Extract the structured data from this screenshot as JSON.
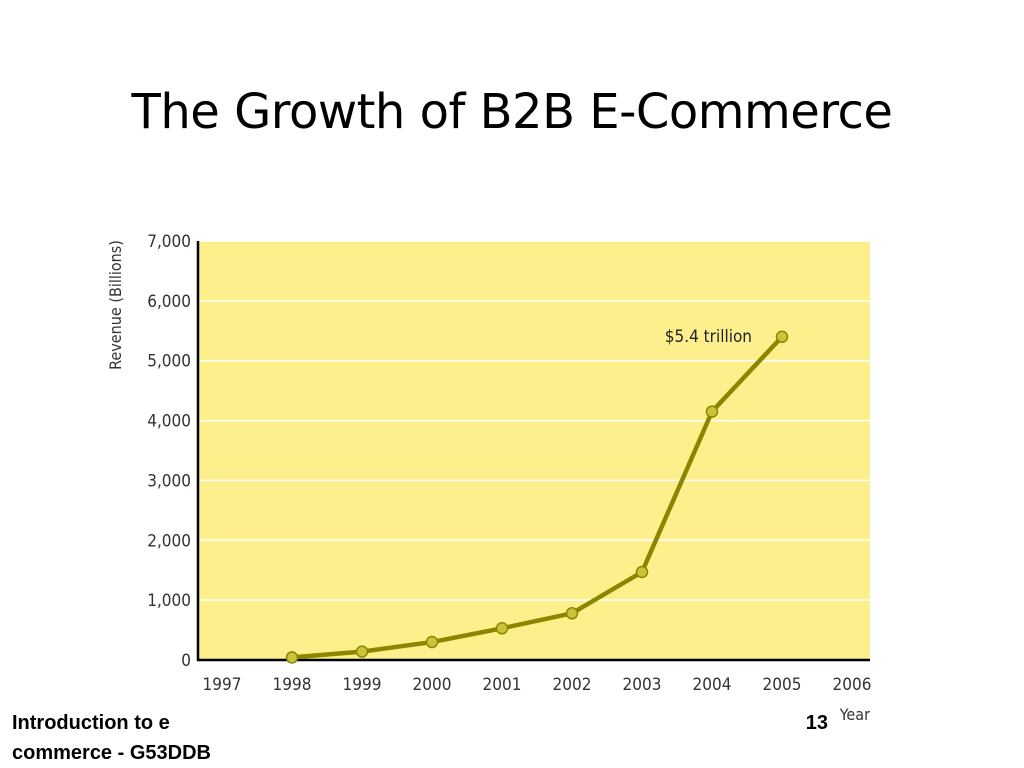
{
  "slide": {
    "title": "The Growth of B2B E-Commerce",
    "footer_line1": "Introduction to e",
    "footer_line2": "commerce - G53DDB",
    "page_number": "13"
  },
  "colors": {
    "plot_background": "#fdf08c",
    "gridline": "#ffffff",
    "line": "#8c8500",
    "marker_fill": "#c9c43a",
    "marker_stroke": "#8c8500",
    "axis": "#000000",
    "text": "#333333"
  },
  "chart_data": {
    "type": "line",
    "title": "",
    "xlabel": "Year",
    "ylabel": "Revenue (Billions)",
    "categories": [
      "1997",
      "1998",
      "1999",
      "2000",
      "2001",
      "2002",
      "2003",
      "2004",
      "2005",
      "2006"
    ],
    "y_ticks": [
      "0",
      "1,000",
      "2,000",
      "3,000",
      "4,000",
      "5,000",
      "6,000",
      "7,000"
    ],
    "ylim": [
      0,
      7000
    ],
    "grid": true,
    "series": [
      {
        "x": [
          "1998",
          "1999",
          "2000",
          "2001",
          "2002",
          "2003",
          "2004",
          "2005"
        ],
        "values": [
          43,
          140,
          300,
          530,
          780,
          1470,
          4150,
          5400
        ]
      }
    ],
    "annotations": [
      {
        "text": "$5.4 trillion",
        "x": "2005",
        "y": 5400
      }
    ]
  }
}
